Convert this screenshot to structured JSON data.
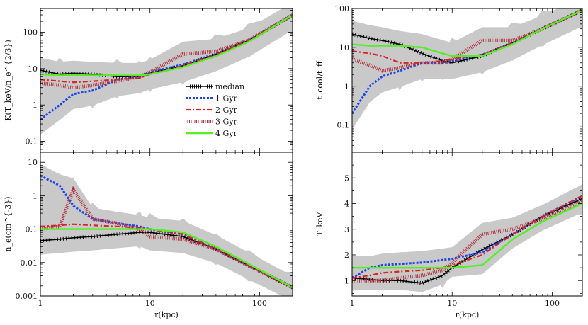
{
  "chart_data": [
    {
      "type": "line",
      "panel": "top-left",
      "ylabel": "K(T_keV/n_e^{2/3})",
      "xlabel": "",
      "xscale": "log",
      "yscale": "log",
      "xlim": [
        1,
        200
      ],
      "ylim": [
        0.05,
        450
      ],
      "xticks": [
        "1",
        "10",
        "100"
      ],
      "yticks": [
        "0.1",
        "1",
        "10",
        "100"
      ],
      "x": [
        1,
        1.5,
        2,
        3,
        5,
        8,
        10,
        20,
        40,
        80,
        200
      ],
      "series": [
        {
          "name": "median",
          "values": [
            9,
            7,
            7.5,
            7,
            6,
            6,
            7.5,
            12,
            25,
            60,
            300
          ]
        },
        {
          "name": "1 Gyr",
          "values": [
            0.4,
            1.0,
            2.0,
            2.5,
            5,
            6,
            8,
            13,
            25,
            60,
            300
          ]
        },
        {
          "name": "2 Gyr",
          "values": [
            5,
            4.5,
            4.2,
            4.5,
            5,
            5.5,
            7,
            12,
            24,
            60,
            300
          ]
        },
        {
          "name": "3 Gyr",
          "values": [
            4,
            3.5,
            3,
            3.5,
            4.5,
            6,
            8,
            25,
            30,
            60,
            300
          ]
        },
        {
          "name": "4 Gyr",
          "values": [
            7,
            6.5,
            6.5,
            6.5,
            6.5,
            6.5,
            7,
            11,
            22,
            55,
            300
          ]
        }
      ]
    },
    {
      "type": "line",
      "panel": "top-right",
      "ylabel": "t_cool/t_ff",
      "xlabel": "",
      "xscale": "log",
      "yscale": "log",
      "xlim": [
        1,
        200
      ],
      "ylim": [
        0.02,
        100
      ],
      "xticks": [
        "1",
        "10",
        "100"
      ],
      "yticks": [
        "0.1",
        "1",
        "10",
        "100"
      ],
      "x": [
        1,
        1.5,
        2,
        3,
        5,
        8,
        10,
        20,
        40,
        80,
        200
      ],
      "series": [
        {
          "name": "median",
          "values": [
            22,
            17,
            15,
            12,
            7,
            4.5,
            4,
            6,
            13,
            30,
            90
          ]
        },
        {
          "name": "1 Gyr",
          "values": [
            0.2,
            1.0,
            1.8,
            2.5,
            4,
            4,
            4.5,
            6.5,
            13,
            30,
            90
          ]
        },
        {
          "name": "2 Gyr",
          "values": [
            8,
            7,
            6,
            4,
            4,
            4.5,
            5,
            6.5,
            13,
            30,
            90
          ]
        },
        {
          "name": "3 Gyr",
          "values": [
            5,
            3.5,
            2.5,
            3,
            4,
            4,
            5,
            15,
            15,
            30,
            90
          ]
        },
        {
          "name": "4 Gyr",
          "values": [
            12,
            11,
            11,
            11,
            10,
            7,
            6,
            6,
            12,
            30,
            90
          ]
        }
      ]
    },
    {
      "type": "line",
      "panel": "bottom-left",
      "ylabel": "n_e(cm^{-3})",
      "xlabel": "r(kpc)",
      "xscale": "log",
      "yscale": "log",
      "xlim": [
        1,
        200
      ],
      "ylim": [
        0.001,
        20
      ],
      "xticks": [
        "1",
        "10",
        "100"
      ],
      "yticks": [
        "0.001",
        "0.01",
        "0.1",
        "1",
        "10"
      ],
      "x": [
        1,
        1.5,
        2,
        3,
        5,
        8,
        10,
        20,
        40,
        80,
        200
      ],
      "series": [
        {
          "name": "median",
          "values": [
            0.045,
            0.05,
            0.055,
            0.06,
            0.07,
            0.08,
            0.08,
            0.06,
            0.025,
            0.008,
            0.0018
          ]
        },
        {
          "name": "1 Gyr",
          "values": [
            4,
            2,
            0.5,
            0.2,
            0.15,
            0.12,
            0.1,
            0.07,
            0.025,
            0.008,
            0.0018
          ]
        },
        {
          "name": "2 Gyr",
          "values": [
            0.12,
            0.13,
            0.14,
            0.13,
            0.12,
            0.11,
            0.1,
            0.07,
            0.025,
            0.008,
            0.0018
          ]
        },
        {
          "name": "3 Gyr",
          "values": [
            0.1,
            0.12,
            1.5,
            0.2,
            0.15,
            0.1,
            0.06,
            0.05,
            0.025,
            0.008,
            0.0018
          ]
        },
        {
          "name": "4 Gyr",
          "values": [
            0.1,
            0.1,
            0.1,
            0.1,
            0.1,
            0.1,
            0.1,
            0.08,
            0.03,
            0.009,
            0.0018
          ]
        }
      ]
    },
    {
      "type": "line",
      "panel": "bottom-right",
      "ylabel": "T_keV",
      "xlabel": "r(kpc)",
      "xscale": "log",
      "yscale": "linear",
      "xlim": [
        1,
        200
      ],
      "ylim": [
        0.4,
        6
      ],
      "xticks": [
        "1",
        "10",
        "100"
      ],
      "yticks": [
        "1",
        "2",
        "3",
        "4",
        "5"
      ],
      "x": [
        1,
        1.5,
        2,
        3,
        5,
        8,
        10,
        20,
        40,
        80,
        200
      ],
      "series": [
        {
          "name": "median",
          "values": [
            1.1,
            1.05,
            1.0,
            1.0,
            0.9,
            1.2,
            1.5,
            2.2,
            2.8,
            3.5,
            4.2
          ]
        },
        {
          "name": "1 Gyr",
          "values": [
            1.1,
            1.5,
            1.6,
            1.65,
            1.7,
            1.8,
            1.85,
            2.1,
            2.8,
            3.5,
            4.3
          ]
        },
        {
          "name": "2 Gyr",
          "values": [
            1.1,
            1.2,
            1.3,
            1.35,
            1.4,
            1.5,
            1.6,
            2.0,
            2.8,
            3.5,
            4.3
          ]
        },
        {
          "name": "3 Gyr",
          "values": [
            1.0,
            1.0,
            1.0,
            1.1,
            1.2,
            1.4,
            1.7,
            2.8,
            3.0,
            3.4,
            4.1
          ]
        },
        {
          "name": "4 Gyr",
          "values": [
            1.5,
            1.5,
            1.5,
            1.5,
            1.5,
            1.5,
            1.5,
            1.6,
            2.6,
            3.3,
            4.0
          ]
        }
      ]
    }
  ],
  "legend": {
    "entries": [
      {
        "label": "median",
        "color": "#000000",
        "style": "plus"
      },
      {
        "label": "1 Gyr",
        "color": "#2244ee",
        "style": "dotted"
      },
      {
        "label": "2 Gyr",
        "color": "#dd2222",
        "style": "dashdot"
      },
      {
        "label": "3 Gyr",
        "color": "#b0303a",
        "style": "hatched"
      },
      {
        "label": "4 Gyr",
        "color": "#55ee22",
        "style": "solid"
      }
    ]
  },
  "colors": {
    "band": "#c9c9c9",
    "axis": "#000000"
  }
}
